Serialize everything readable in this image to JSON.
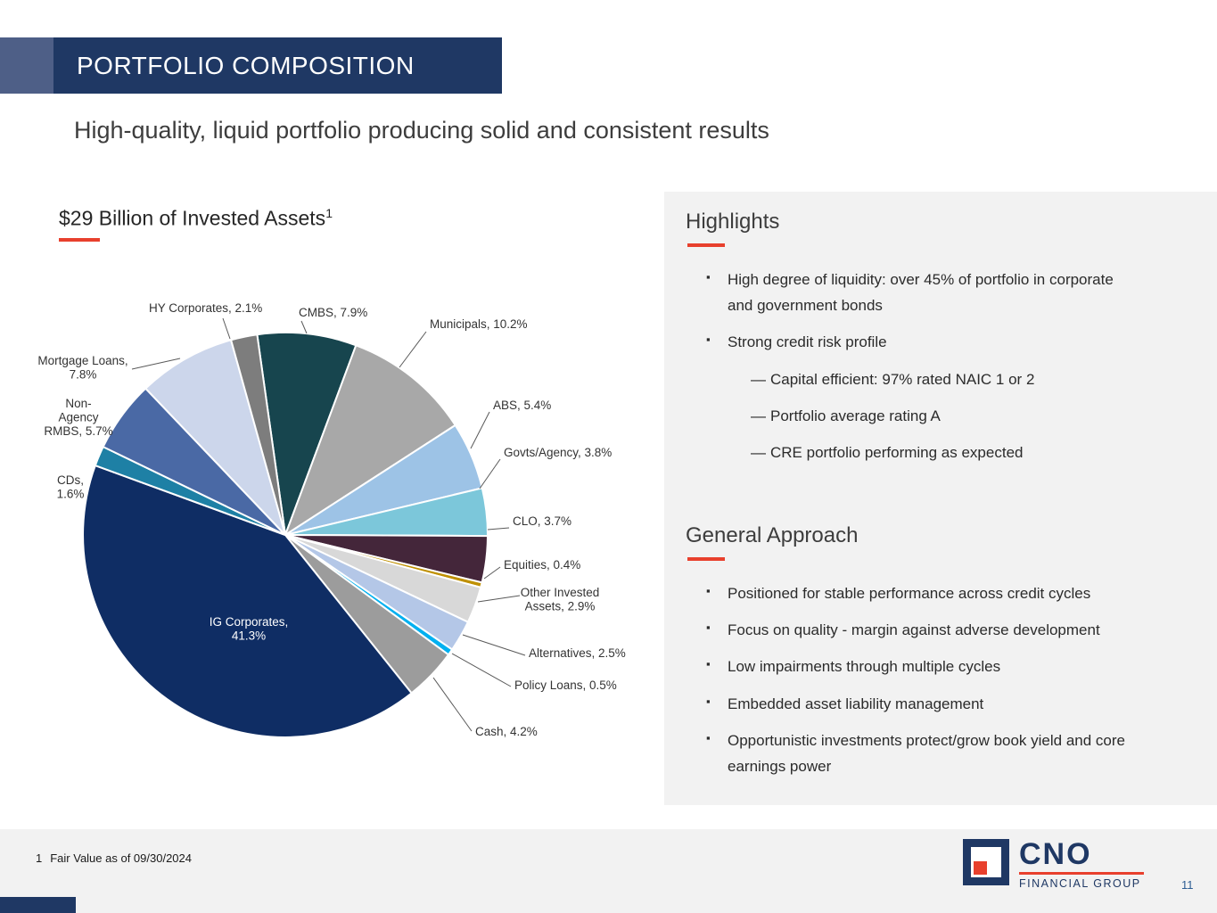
{
  "slide": {
    "banner": "PORTFOLIO COMPOSITION",
    "headline": "High-quality, liquid portfolio producing solid and consistent results"
  },
  "chart": {
    "title": "$29 Billion of Invested Assets",
    "title_sup": "1"
  },
  "chart_data": {
    "type": "pie",
    "title": "$29 Billion of Invested Assets",
    "unit": "%",
    "start_angle_deg": -8,
    "legend": "none",
    "segments": [
      {
        "label": "CMBS",
        "value": 7.9,
        "color": "#17454e",
        "label_lines": [
          "CMBS, 7.9%"
        ]
      },
      {
        "label": "Municipals",
        "value": 10.2,
        "color": "#a8a8a8",
        "label_lines": [
          "Municipals, 10.2%"
        ]
      },
      {
        "label": "ABS",
        "value": 5.4,
        "color": "#9dc3e6",
        "label_lines": [
          "ABS, 5.4%"
        ]
      },
      {
        "label": "Govts/Agency",
        "value": 3.8,
        "color": "#7cc7da",
        "label_lines": [
          "Govts/Agency, 3.8%"
        ]
      },
      {
        "label": "CLO",
        "value": 3.7,
        "color": "#44263a",
        "label_lines": [
          "CLO, 3.7%"
        ]
      },
      {
        "label": "Equities",
        "value": 0.4,
        "color": "#bf9000",
        "label_lines": [
          "Equities, 0.4%"
        ]
      },
      {
        "label": "Other Invested Assets",
        "value": 2.9,
        "color": "#d8d8d8",
        "label_lines": [
          "Other Invested",
          "Assets, 2.9%"
        ]
      },
      {
        "label": "Alternatives",
        "value": 2.5,
        "color": "#b4c7e7",
        "label_lines": [
          "Alternatives, 2.5%"
        ]
      },
      {
        "label": "Policy Loans",
        "value": 0.5,
        "color": "#00b0f0",
        "label_lines": [
          "Policy Loans, 0.5%"
        ]
      },
      {
        "label": "Cash",
        "value": 4.2,
        "color": "#9c9c9c",
        "label_lines": [
          "Cash, 4.2%"
        ]
      },
      {
        "label": "IG Corporates",
        "value": 41.3,
        "color": "#0f2d64",
        "label_lines": [
          "IG Corporates,",
          "41.3%"
        ],
        "label_inside": true
      },
      {
        "label": "CDs",
        "value": 1.6,
        "color": "#1e80a5",
        "label_lines": [
          "CDs,",
          "1.6%"
        ]
      },
      {
        "label": "Non-Agency RMBS",
        "value": 5.7,
        "color": "#4a69a5",
        "label_lines": [
          "Non-",
          "Agency",
          "RMBS, 5.7%"
        ]
      },
      {
        "label": "Mortgage Loans",
        "value": 7.8,
        "color": "#ccd6eb",
        "label_lines": [
          "Mortgage Loans,",
          "7.8%"
        ]
      },
      {
        "label": "HY Corporates",
        "value": 2.1,
        "color": "#7d7d7d",
        "label_lines": [
          "HY Corporates, 2.1%"
        ]
      }
    ]
  },
  "highlights": {
    "heading": "Highlights",
    "bullets": [
      {
        "text": "High degree of liquidity: over 45% of portfolio in corporate and government bonds"
      },
      {
        "text": "Strong credit risk profile",
        "sub": [
          "Capital efficient: 97% rated NAIC 1 or 2",
          "Portfolio average rating A",
          "CRE portfolio performing as expected"
        ]
      }
    ]
  },
  "general_approach": {
    "heading": "General Approach",
    "bullets": [
      "Positioned for stable performance across credit cycles",
      "Focus on quality - margin against adverse development",
      "Low impairments through multiple cycles",
      "Embedded asset liability management",
      "Opportunistic investments protect/grow book yield and core earnings power"
    ]
  },
  "footer": {
    "footnote_marker": "1",
    "footnote_text": "Fair Value as of 09/30/2024",
    "page_number": "11"
  },
  "logo": {
    "name": "CNO",
    "subtitle": "FINANCIAL GROUP"
  },
  "colors": {
    "navy": "#1f3864",
    "accent_red": "#e8402d",
    "panel_gray": "#f2f2f2",
    "slate_accent": "#4e5f87"
  }
}
